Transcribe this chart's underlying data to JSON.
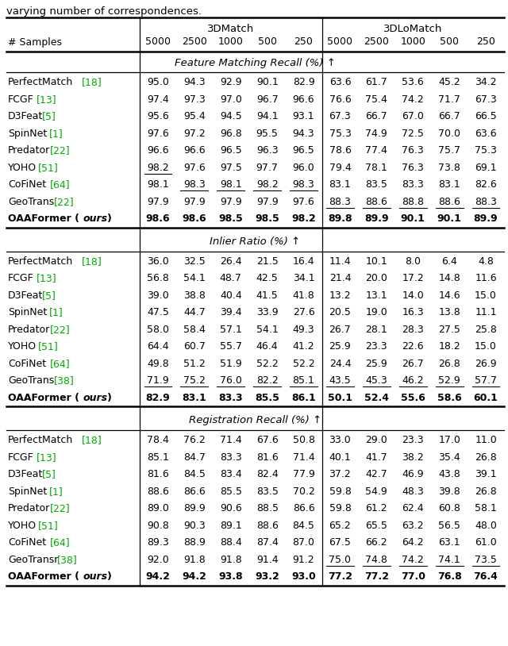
{
  "title_text": "varying number of correspondences.",
  "sections": [
    {
      "title": "Feature Matching Recall (%) ↑",
      "rows": [
        {
          "method": "PerfectMatch",
          "ref": "[18]",
          "vals": [
            "95.0",
            "94.3",
            "92.9",
            "90.1",
            "82.9",
            "63.6",
            "61.7",
            "53.6",
            "45.2",
            "34.2"
          ],
          "underline": [],
          "bold": false,
          "ours": false
        },
        {
          "method": "FCGF",
          "ref": "[13]",
          "vals": [
            "97.4",
            "97.3",
            "97.0",
            "96.7",
            "96.6",
            "76.6",
            "75.4",
            "74.2",
            "71.7",
            "67.3"
          ],
          "underline": [],
          "bold": false,
          "ours": false
        },
        {
          "method": "D3Feat",
          "ref": "[5]",
          "vals": [
            "95.6",
            "95.4",
            "94.5",
            "94.1",
            "93.1",
            "67.3",
            "66.7",
            "67.0",
            "66.7",
            "66.5"
          ],
          "underline": [],
          "bold": false,
          "ours": false
        },
        {
          "method": "SpinNet",
          "ref": "[1]",
          "vals": [
            "97.6",
            "97.2",
            "96.8",
            "95.5",
            "94.3",
            "75.3",
            "74.9",
            "72.5",
            "70.0",
            "63.6"
          ],
          "underline": [],
          "bold": false,
          "ours": false
        },
        {
          "method": "Predator",
          "ref": "[22]",
          "vals": [
            "96.6",
            "96.6",
            "96.5",
            "96.3",
            "96.5",
            "78.6",
            "77.4",
            "76.3",
            "75.7",
            "75.3"
          ],
          "underline": [],
          "bold": false,
          "ours": false
        },
        {
          "method": "YOHO",
          "ref": "[51]",
          "vals": [
            "98.2",
            "97.6",
            "97.5",
            "97.7",
            "96.0",
            "79.4",
            "78.1",
            "76.3",
            "73.8",
            "69.1"
          ],
          "underline": [
            0
          ],
          "bold": false,
          "ours": false
        },
        {
          "method": "CoFiNet",
          "ref": "[64]",
          "vals": [
            "98.1",
            "98.3",
            "98.1",
            "98.2",
            "98.3",
            "83.1",
            "83.5",
            "83.3",
            "83.1",
            "82.6"
          ],
          "underline": [
            1,
            2,
            3,
            4
          ],
          "bold": false,
          "ours": false
        },
        {
          "method": "GeoTrans",
          "ref": "[22]",
          "vals": [
            "97.9",
            "97.9",
            "97.9",
            "97.9",
            "97.6",
            "88.3",
            "88.6",
            "88.8",
            "88.6",
            "88.3"
          ],
          "underline": [
            5,
            6,
            7,
            8,
            9
          ],
          "bold": false,
          "ours": false
        },
        {
          "method": "OAAFormer",
          "ref": "ours",
          "vals": [
            "98.6",
            "98.6",
            "98.5",
            "98.5",
            "98.2",
            "89.8",
            "89.9",
            "90.1",
            "90.1",
            "89.9"
          ],
          "underline": [],
          "bold": true,
          "ours": true
        }
      ]
    },
    {
      "title": "Inlier Ratio (%) ↑",
      "rows": [
        {
          "method": "PerfectMatch",
          "ref": "[18]",
          "vals": [
            "36.0",
            "32.5",
            "26.4",
            "21.5",
            "16.4",
            "11.4",
            "10.1",
            "8.0",
            "6.4",
            "4.8"
          ],
          "underline": [],
          "bold": false,
          "ours": false
        },
        {
          "method": "FCGF",
          "ref": "[13]",
          "vals": [
            "56.8",
            "54.1",
            "48.7",
            "42.5",
            "34.1",
            "21.4",
            "20.0",
            "17.2",
            "14.8",
            "11.6"
          ],
          "underline": [],
          "bold": false,
          "ours": false
        },
        {
          "method": "D3Feat",
          "ref": "[5]",
          "vals": [
            "39.0",
            "38.8",
            "40.4",
            "41.5",
            "41.8",
            "13.2",
            "13.1",
            "14.0",
            "14.6",
            "15.0"
          ],
          "underline": [],
          "bold": false,
          "ours": false
        },
        {
          "method": "SpinNet",
          "ref": "[1]",
          "vals": [
            "47.5",
            "44.7",
            "39.4",
            "33.9",
            "27.6",
            "20.5",
            "19.0",
            "16.3",
            "13.8",
            "11.1"
          ],
          "underline": [],
          "bold": false,
          "ours": false
        },
        {
          "method": "Predator",
          "ref": "[22]",
          "vals": [
            "58.0",
            "58.4",
            "57.1",
            "54.1",
            "49.3",
            "26.7",
            "28.1",
            "28.3",
            "27.5",
            "25.8"
          ],
          "underline": [],
          "bold": false,
          "ours": false
        },
        {
          "method": "YOHO",
          "ref": "[51]",
          "vals": [
            "64.4",
            "60.7",
            "55.7",
            "46.4",
            "41.2",
            "25.9",
            "23.3",
            "22.6",
            "18.2",
            "15.0"
          ],
          "underline": [],
          "bold": false,
          "ours": false
        },
        {
          "method": "CoFiNet",
          "ref": "[64]",
          "vals": [
            "49.8",
            "51.2",
            "51.9",
            "52.2",
            "52.2",
            "24.4",
            "25.9",
            "26.7",
            "26.8",
            "26.9"
          ],
          "underline": [],
          "bold": false,
          "ours": false
        },
        {
          "method": "GeoTrans",
          "ref": "[38]",
          "vals": [
            "71.9",
            "75.2",
            "76.0",
            "82.2",
            "85.1",
            "43.5",
            "45.3",
            "46.2",
            "52.9",
            "57.7"
          ],
          "underline": [
            0,
            1,
            2,
            3,
            4,
            5,
            6,
            7,
            8,
            9
          ],
          "bold": false,
          "ours": false
        },
        {
          "method": "OAAFormer",
          "ref": "ours",
          "vals": [
            "82.9",
            "83.1",
            "83.3",
            "85.5",
            "86.1",
            "50.1",
            "52.4",
            "55.6",
            "58.6",
            "60.1"
          ],
          "underline": [],
          "bold": true,
          "ours": true
        }
      ]
    },
    {
      "title": "Registration Recall (%) ↑",
      "rows": [
        {
          "method": "PerfectMatch",
          "ref": "[18]",
          "vals": [
            "78.4",
            "76.2",
            "71.4",
            "67.6",
            "50.8",
            "33.0",
            "29.0",
            "23.3",
            "17.0",
            "11.0"
          ],
          "underline": [],
          "bold": false,
          "ours": false
        },
        {
          "method": "FCGF",
          "ref": "[13]",
          "vals": [
            "85.1",
            "84.7",
            "83.3",
            "81.6",
            "71.4",
            "40.1",
            "41.7",
            "38.2",
            "35.4",
            "26.8"
          ],
          "underline": [],
          "bold": false,
          "ours": false
        },
        {
          "method": "D3Feat",
          "ref": "[5]",
          "vals": [
            "81.6",
            "84.5",
            "83.4",
            "82.4",
            "77.9",
            "37.2",
            "42.7",
            "46.9",
            "43.8",
            "39.1"
          ],
          "underline": [],
          "bold": false,
          "ours": false
        },
        {
          "method": "SpinNet",
          "ref": "[1]",
          "vals": [
            "88.6",
            "86.6",
            "85.5",
            "83.5",
            "70.2",
            "59.8",
            "54.9",
            "48.3",
            "39.8",
            "26.8"
          ],
          "underline": [],
          "bold": false,
          "ours": false
        },
        {
          "method": "Predator",
          "ref": "[22]",
          "vals": [
            "89.0",
            "89.9",
            "90.6",
            "88.5",
            "86.6",
            "59.8",
            "61.2",
            "62.4",
            "60.8",
            "58.1"
          ],
          "underline": [],
          "bold": false,
          "ours": false
        },
        {
          "method": "YOHO",
          "ref": "[51]",
          "vals": [
            "90.8",
            "90.3",
            "89.1",
            "88.6",
            "84.5",
            "65.2",
            "65.5",
            "63.2",
            "56.5",
            "48.0"
          ],
          "underline": [],
          "bold": false,
          "ours": false
        },
        {
          "method": "CoFiNet",
          "ref": "[64]",
          "vals": [
            "89.3",
            "88.9",
            "88.4",
            "87.4",
            "87.0",
            "67.5",
            "66.2",
            "64.2",
            "63.1",
            "61.0"
          ],
          "underline": [],
          "bold": false,
          "ours": false
        },
        {
          "method": "GeoTransr",
          "ref": "[38]",
          "vals": [
            "92.0",
            "91.8",
            "91.8",
            "91.4",
            "91.2",
            "75.0",
            "74.8",
            "74.2",
            "74.1",
            "73.5"
          ],
          "underline": [
            5,
            6,
            7,
            8,
            9
          ],
          "bold": false,
          "ours": false
        },
        {
          "method": "OAAFormer",
          "ref": "ours",
          "vals": [
            "94.2",
            "94.2",
            "93.8",
            "93.2",
            "93.0",
            "77.2",
            "77.2",
            "77.0",
            "76.8",
            "76.4"
          ],
          "underline": [],
          "bold": true,
          "ours": true
        }
      ]
    }
  ],
  "method_ref_offsets": {
    "PerfectMatch": 0.148,
    "FCGF": 0.057,
    "D3Feat": 0.068,
    "SpinNet": 0.082,
    "Predator": 0.085,
    "YOHO": 0.06,
    "CoFiNet": 0.085,
    "GeoTrans": 0.092,
    "GeoTransr": 0.098,
    "OAAFormer": 0.118
  }
}
